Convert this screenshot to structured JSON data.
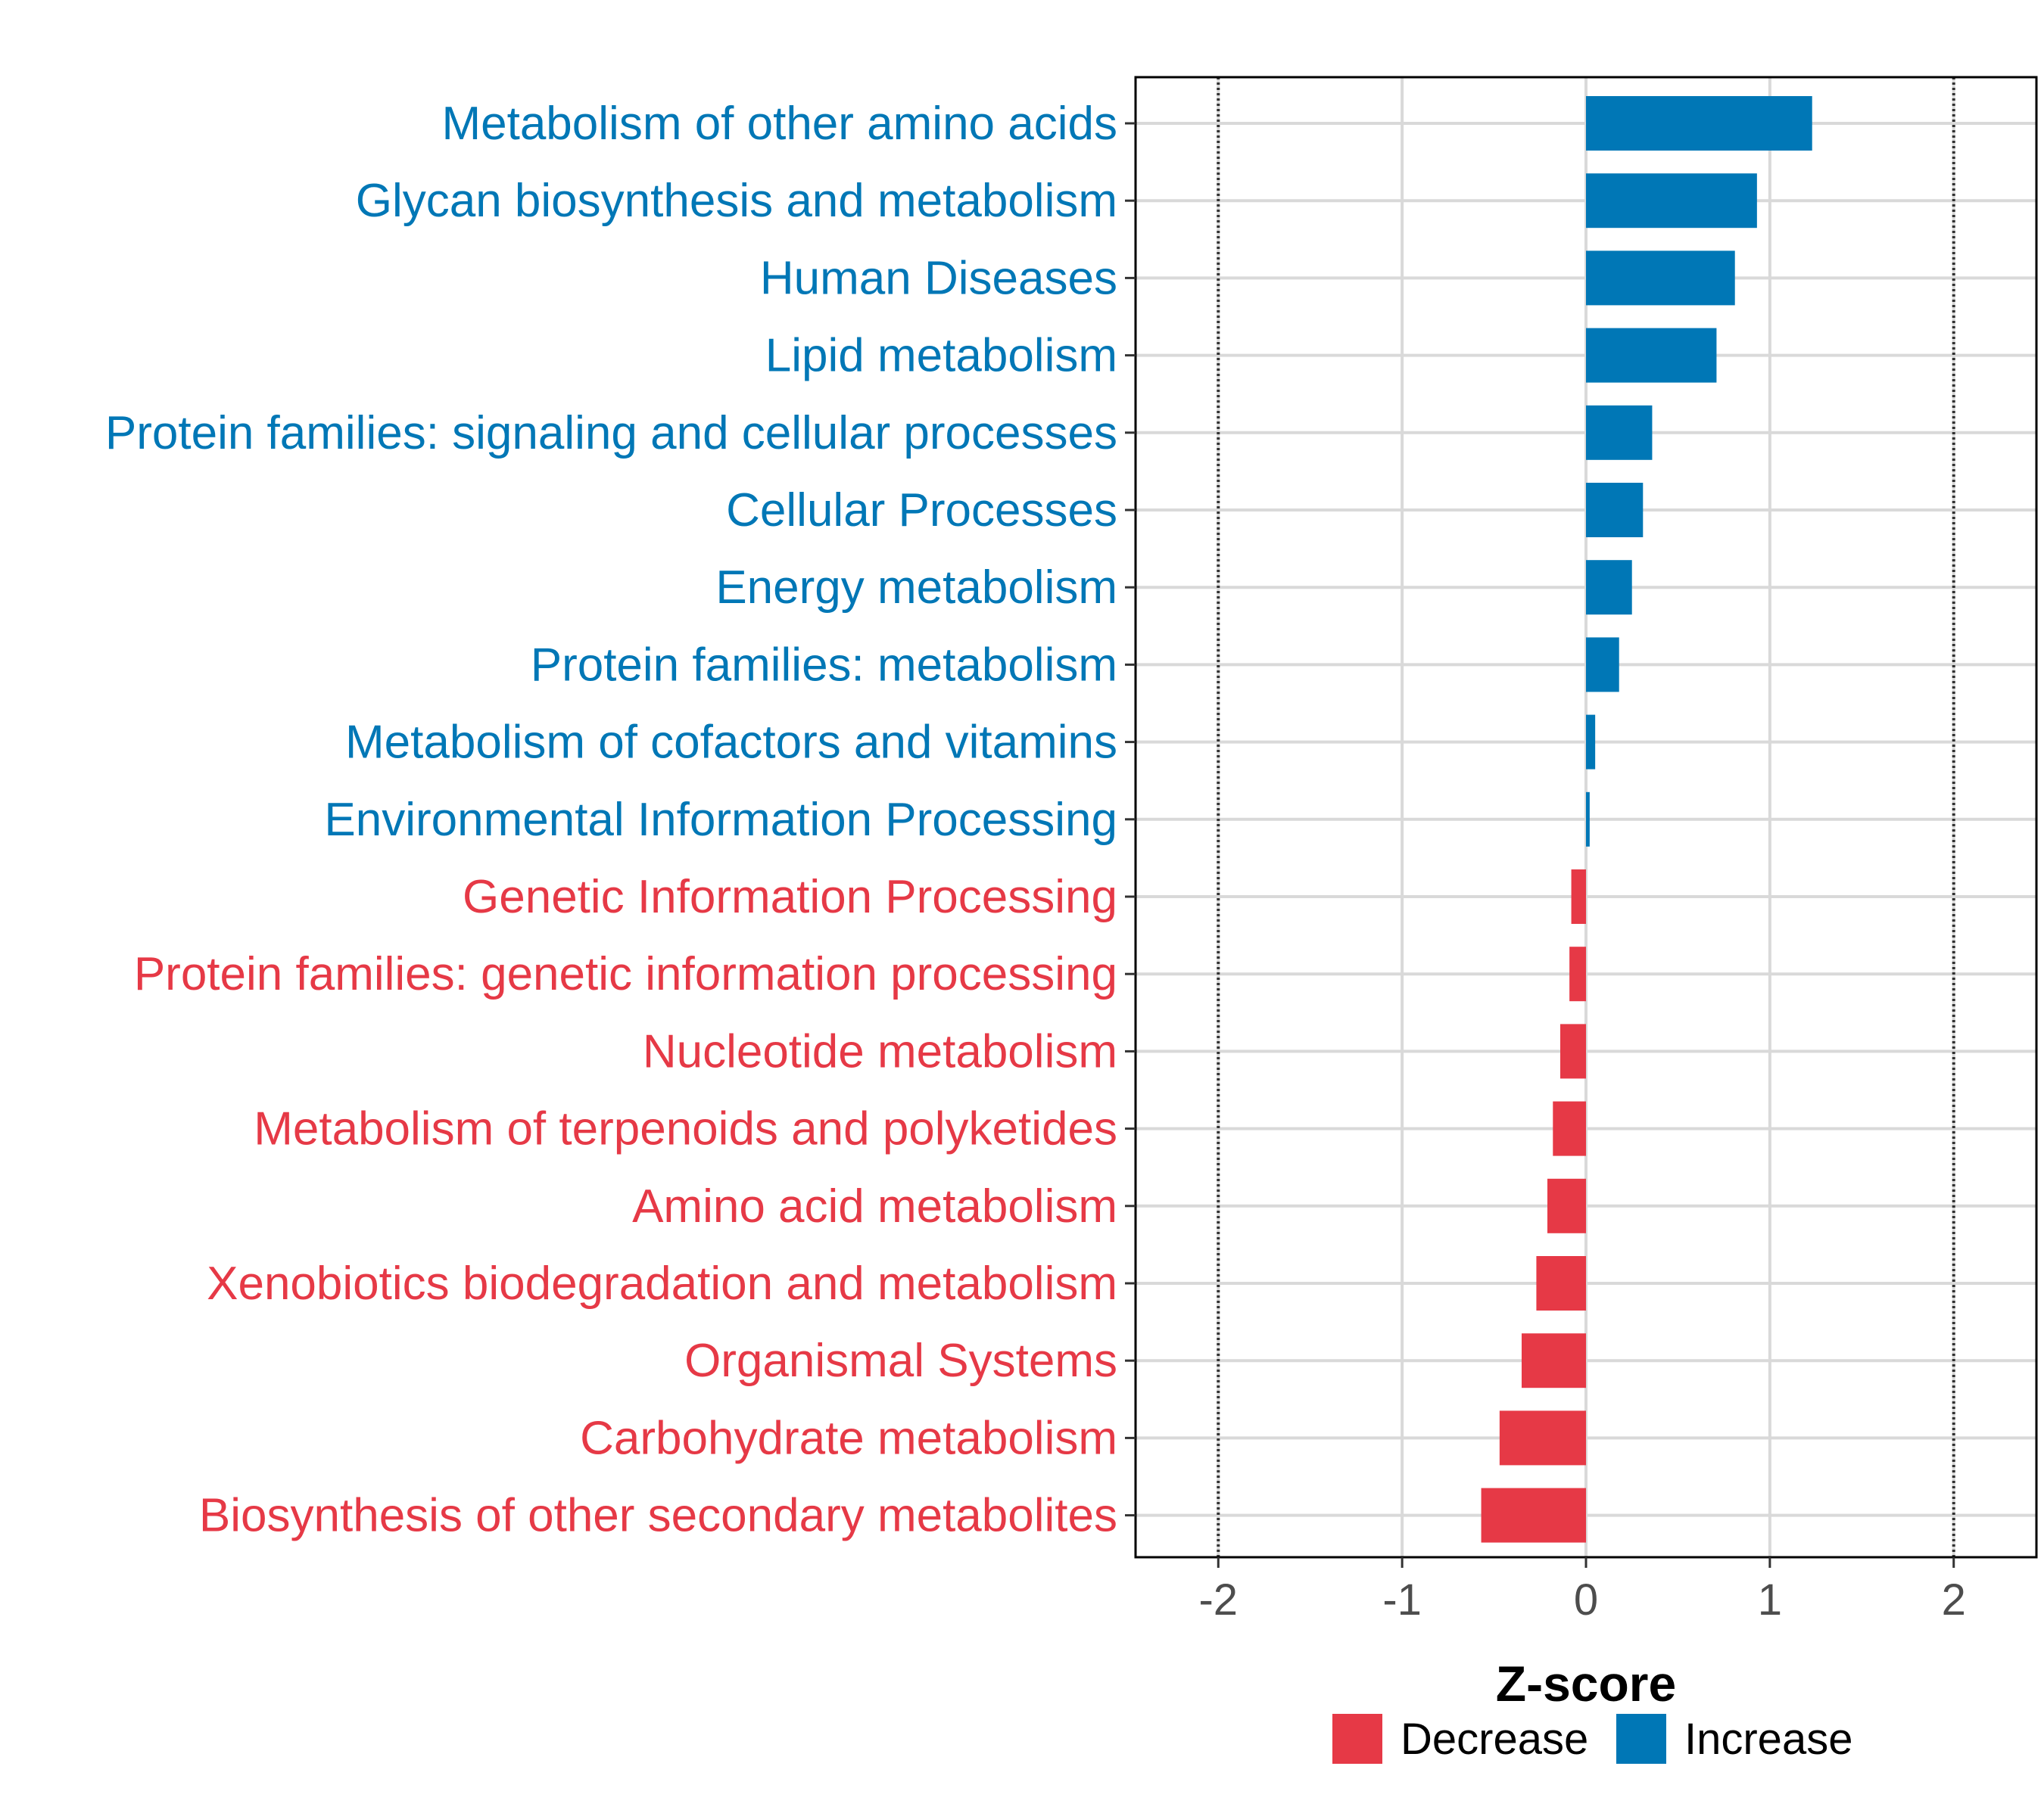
{
  "chart_data": {
    "type": "bar",
    "orientation": "horizontal",
    "xlabel": "Z-score",
    "xlim": [
      -2.45,
      2.45
    ],
    "xticks": [
      -2,
      -1,
      0,
      1,
      2
    ],
    "xtick_labels": [
      "-2",
      "-1",
      "0",
      "1",
      "2"
    ],
    "reference_lines": [
      -2,
      2
    ],
    "grid": true,
    "categories": [
      "Metabolism of other amino acids",
      "Glycan biosynthesis and metabolism",
      "Human Diseases",
      "Lipid metabolism",
      "Protein families: signaling and cellular processes",
      "Cellular Processes",
      "Energy metabolism",
      "Protein families: metabolism",
      "Metabolism of cofactors and vitamins",
      "Environmental Information Processing",
      "Genetic Information Processing",
      "Protein families: genetic information processing",
      "Nucleotide metabolism",
      "Metabolism of terpenoids and polyketides",
      "Amino acid metabolism",
      "Xenobiotics biodegradation and metabolism",
      "Organismal Systems",
      "Carbohydrate metabolism",
      "Biosynthesis of other secondary metabolites"
    ],
    "values": [
      1.23,
      0.93,
      0.81,
      0.71,
      0.36,
      0.31,
      0.25,
      0.18,
      0.05,
      0.02,
      -0.08,
      -0.09,
      -0.14,
      -0.18,
      -0.21,
      -0.27,
      -0.35,
      -0.47,
      -0.57
    ],
    "groups": [
      "Increase",
      "Increase",
      "Increase",
      "Increase",
      "Increase",
      "Increase",
      "Increase",
      "Increase",
      "Increase",
      "Increase",
      "Decrease",
      "Decrease",
      "Decrease",
      "Decrease",
      "Decrease",
      "Decrease",
      "Decrease",
      "Decrease",
      "Decrease"
    ],
    "legend": {
      "position": "bottom",
      "entries": [
        {
          "label": "Decrease",
          "color": "#e63946"
        },
        {
          "label": "Increase",
          "color": "#0077b6"
        }
      ]
    },
    "colors": {
      "Decrease": "#e63946",
      "Increase": "#0077b6"
    }
  }
}
